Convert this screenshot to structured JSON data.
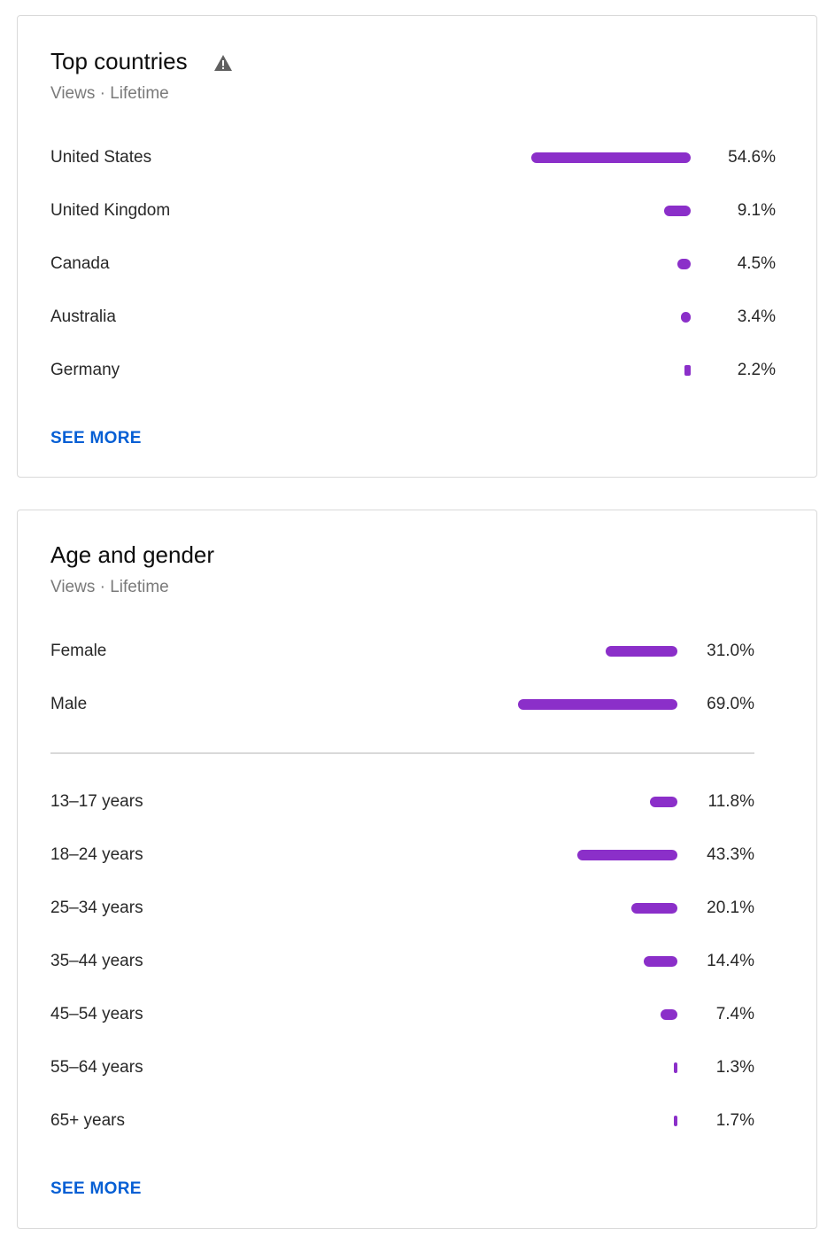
{
  "countries_card": {
    "title": "Top countries",
    "subtitle": "Views · Lifetime",
    "warning_icon": "warning-triangle-icon",
    "see_more": "SEE MORE",
    "rows": [
      {
        "label": "United States",
        "value": "54.6%",
        "pct": 54.6
      },
      {
        "label": "United Kingdom",
        "value": "9.1%",
        "pct": 9.1
      },
      {
        "label": "Canada",
        "value": "4.5%",
        "pct": 4.5
      },
      {
        "label": "Australia",
        "value": "3.4%",
        "pct": 3.4
      },
      {
        "label": "Germany",
        "value": "2.2%",
        "pct": 2.2
      }
    ]
  },
  "age_gender_card": {
    "title": "Age and gender",
    "subtitle": "Views · Lifetime",
    "see_more": "SEE MORE",
    "gender_rows": [
      {
        "label": "Female",
        "value": "31.0%",
        "pct": 31.0
      },
      {
        "label": "Male",
        "value": "69.0%",
        "pct": 69.0
      }
    ],
    "age_rows": [
      {
        "label": "13–17 years",
        "value": "11.8%",
        "pct": 11.8
      },
      {
        "label": "18–24 years",
        "value": "43.3%",
        "pct": 43.3
      },
      {
        "label": "25–34 years",
        "value": "20.1%",
        "pct": 20.1
      },
      {
        "label": "35–44 years",
        "value": "14.4%",
        "pct": 14.4
      },
      {
        "label": "45–54 years",
        "value": "7.4%",
        "pct": 7.4
      },
      {
        "label": "55–64 years",
        "value": "1.3%",
        "pct": 1.3
      },
      {
        "label": "65+ years",
        "value": "1.7%",
        "pct": 1.7
      }
    ]
  },
  "colors": {
    "bar": "#8b2fc9",
    "link": "#065fd4"
  }
}
